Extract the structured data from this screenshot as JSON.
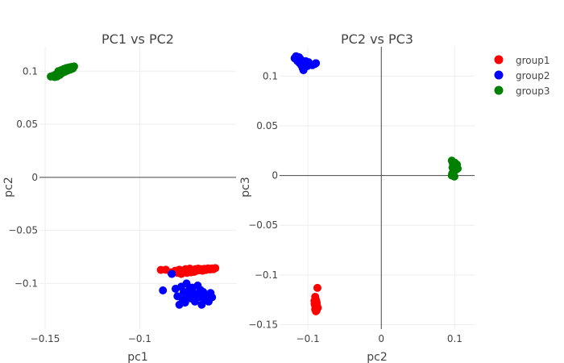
{
  "chart_data": [
    {
      "type": "scatter",
      "title": "PC1 vs PC2",
      "xlabel": "pc1",
      "ylabel": "pc2",
      "xlim": [
        -0.153,
        -0.049
      ],
      "ylim": [
        -0.143,
        0.123
      ],
      "xticks": [
        -0.15,
        -0.1
      ],
      "xtick_labels": [
        "−0.15",
        "−0.1"
      ],
      "yticks": [
        -0.1,
        -0.05,
        0,
        0.05,
        0.1
      ],
      "ytick_labels": [
        "−0.1",
        "−0.05",
        "0",
        "0.05",
        "0.1"
      ],
      "grid": true,
      "series": [
        {
          "name": "group1",
          "color": "#ff0000",
          "points": [
            [
              -0.0888,
              -0.0872
            ],
            [
              -0.0862,
              -0.087
            ],
            [
              -0.0835,
              -0.0895
            ],
            [
              -0.0812,
              -0.088
            ],
            [
              -0.08,
              -0.09
            ],
            [
              -0.079,
              -0.087
            ],
            [
              -0.078,
              -0.091
            ],
            [
              -0.0772,
              -0.088
            ],
            [
              -0.0765,
              -0.0895
            ],
            [
              -0.0757,
              -0.0865
            ],
            [
              -0.075,
              -0.09
            ],
            [
              -0.0742,
              -0.088
            ],
            [
              -0.0735,
              -0.086
            ],
            [
              -0.0728,
              -0.0895
            ],
            [
              -0.072,
              -0.0875
            ],
            [
              -0.0712,
              -0.089
            ],
            [
              -0.0705,
              -0.0865
            ],
            [
              -0.0697,
              -0.088
            ],
            [
              -0.069,
              -0.086
            ],
            [
              -0.0682,
              -0.0875
            ],
            [
              -0.0675,
              -0.0865
            ],
            [
              -0.0667,
              -0.088
            ],
            [
              -0.0658,
              -0.0862
            ],
            [
              -0.0648,
              -0.0872
            ],
            [
              -0.0638,
              -0.0858
            ],
            [
              -0.0628,
              -0.0868
            ],
            [
              -0.0618,
              -0.0858
            ],
            [
              -0.061,
              -0.0865
            ],
            [
              -0.06,
              -0.0855
            ]
          ]
        },
        {
          "name": "group2",
          "color": "#0000ff",
          "points": [
            [
              -0.0877,
              -0.1065
            ],
            [
              -0.083,
              -0.091
            ],
            [
              -0.081,
              -0.105
            ],
            [
              -0.08,
              -0.112
            ],
            [
              -0.079,
              -0.12
            ],
            [
              -0.078,
              -0.103
            ],
            [
              -0.0773,
              -0.115
            ],
            [
              -0.0767,
              -0.108
            ],
            [
              -0.076,
              -0.118
            ],
            [
              -0.0752,
              -0.1
            ],
            [
              -0.0745,
              -0.111
            ],
            [
              -0.0738,
              -0.106
            ],
            [
              -0.073,
              -0.114
            ],
            [
              -0.0722,
              -0.104
            ],
            [
              -0.0715,
              -0.109
            ],
            [
              -0.0708,
              -0.117
            ],
            [
              -0.07,
              -0.11
            ],
            [
              -0.0693,
              -0.102
            ],
            [
              -0.0686,
              -0.113
            ],
            [
              -0.0679,
              -0.106
            ],
            [
              -0.0672,
              -0.12
            ],
            [
              -0.0664,
              -0.108
            ],
            [
              -0.0655,
              -0.115
            ],
            [
              -0.0645,
              -0.111
            ],
            [
              -0.0635,
              -0.117
            ],
            [
              -0.0625,
              -0.109
            ],
            [
              -0.0617,
              -0.113
            ]
          ]
        },
        {
          "name": "group3",
          "color": "#008000",
          "points": [
            [
              -0.147,
              0.095
            ],
            [
              -0.146,
              0.0955
            ],
            [
              -0.145,
              0.0945
            ],
            [
              -0.1443,
              0.097
            ],
            [
              -0.1437,
              0.095
            ],
            [
              -0.143,
              0.1
            ],
            [
              -0.1422,
              0.0965
            ],
            [
              -0.1415,
              0.101
            ],
            [
              -0.1408,
              0.0985
            ],
            [
              -0.1402,
              0.102
            ],
            [
              -0.1395,
              0.0995
            ],
            [
              -0.1388,
              0.103
            ],
            [
              -0.1382,
              0.1005
            ],
            [
              -0.1375,
              0.1035
            ],
            [
              -0.1368,
              0.1015
            ],
            [
              -0.1361,
              0.104
            ],
            [
              -0.1354,
              0.1025
            ],
            [
              -0.1347,
              0.1045
            ]
          ]
        }
      ]
    },
    {
      "type": "scatter",
      "title": "PC2 vs PC3",
      "xlabel": "pc2",
      "ylabel": "pc3",
      "xlim": [
        -0.1385,
        0.127
      ],
      "ylim": [
        -0.1545,
        0.1295
      ],
      "xticks": [
        -0.1,
        0,
        0.1
      ],
      "xtick_labels": [
        "−0.1",
        "0",
        "0.1"
      ],
      "yticks": [
        -0.15,
        -0.1,
        -0.05,
        0,
        0.05,
        0.1
      ],
      "ytick_labels": [
        "−0.15",
        "−0.1",
        "−0.05",
        "0",
        "0.05",
        "0.1"
      ],
      "grid": true,
      "series": [
        {
          "name": "group1",
          "color": "#ff0000",
          "points": [
            [
              -0.087,
              -0.113
            ],
            [
              -0.09,
              -0.122
            ],
            [
              -0.091,
              -0.126
            ],
            [
              -0.089,
              -0.125
            ],
            [
              -0.088,
              -0.128
            ],
            [
              -0.0905,
              -0.13
            ],
            [
              -0.0885,
              -0.127
            ],
            [
              -0.0875,
              -0.131
            ],
            [
              -0.0895,
              -0.132
            ],
            [
              -0.087,
              -0.1335
            ],
            [
              -0.09,
              -0.1345
            ],
            [
              -0.088,
              -0.1355
            ],
            [
              -0.089,
              -0.1365
            ],
            [
              -0.0865,
              -0.133
            ],
            [
              -0.0908,
              -0.129
            ]
          ]
        },
        {
          "name": "group2",
          "color": "#0000ff",
          "points": [
            [
              -0.118,
              0.118
            ],
            [
              -0.116,
              0.12
            ],
            [
              -0.114,
              0.115
            ],
            [
              -0.112,
              0.119
            ],
            [
              -0.111,
              0.113
            ],
            [
              -0.11,
              0.117
            ],
            [
              -0.109,
              0.111
            ],
            [
              -0.108,
              0.114
            ],
            [
              -0.107,
              0.108
            ],
            [
              -0.106,
              0.106
            ],
            [
              -0.105,
              0.112
            ],
            [
              -0.104,
              0.109
            ],
            [
              -0.103,
              0.115
            ],
            [
              -0.101,
              0.11
            ],
            [
              -0.099,
              0.114
            ],
            [
              -0.097,
              0.112
            ],
            [
              -0.094,
              0.111
            ],
            [
              -0.091,
              0.112
            ],
            [
              -0.089,
              0.113
            ]
          ]
        },
        {
          "name": "group3",
          "color": "#008000",
          "points": [
            [
              0.096,
              0.015
            ],
            [
              0.0975,
              0.012
            ],
            [
              0.099,
              0.01
            ],
            [
              0.097,
              0.008
            ],
            [
              0.0985,
              0.005
            ],
            [
              0.1,
              0.013
            ],
            [
              0.101,
              0.009
            ],
            [
              0.102,
              0.006
            ],
            [
              0.103,
              0.011
            ],
            [
              0.104,
              0.007
            ],
            [
              0.0965,
              0.002
            ],
            [
              0.098,
              0.004
            ],
            [
              0.0995,
              -0.001
            ],
            [
              0.096,
              0.0
            ]
          ]
        }
      ]
    }
  ],
  "legend": {
    "placement": "top-right",
    "items": [
      {
        "label": "group1",
        "color": "#ff0000"
      },
      {
        "label": "group2",
        "color": "#0000ff"
      },
      {
        "label": "group3",
        "color": "#008000"
      }
    ]
  }
}
